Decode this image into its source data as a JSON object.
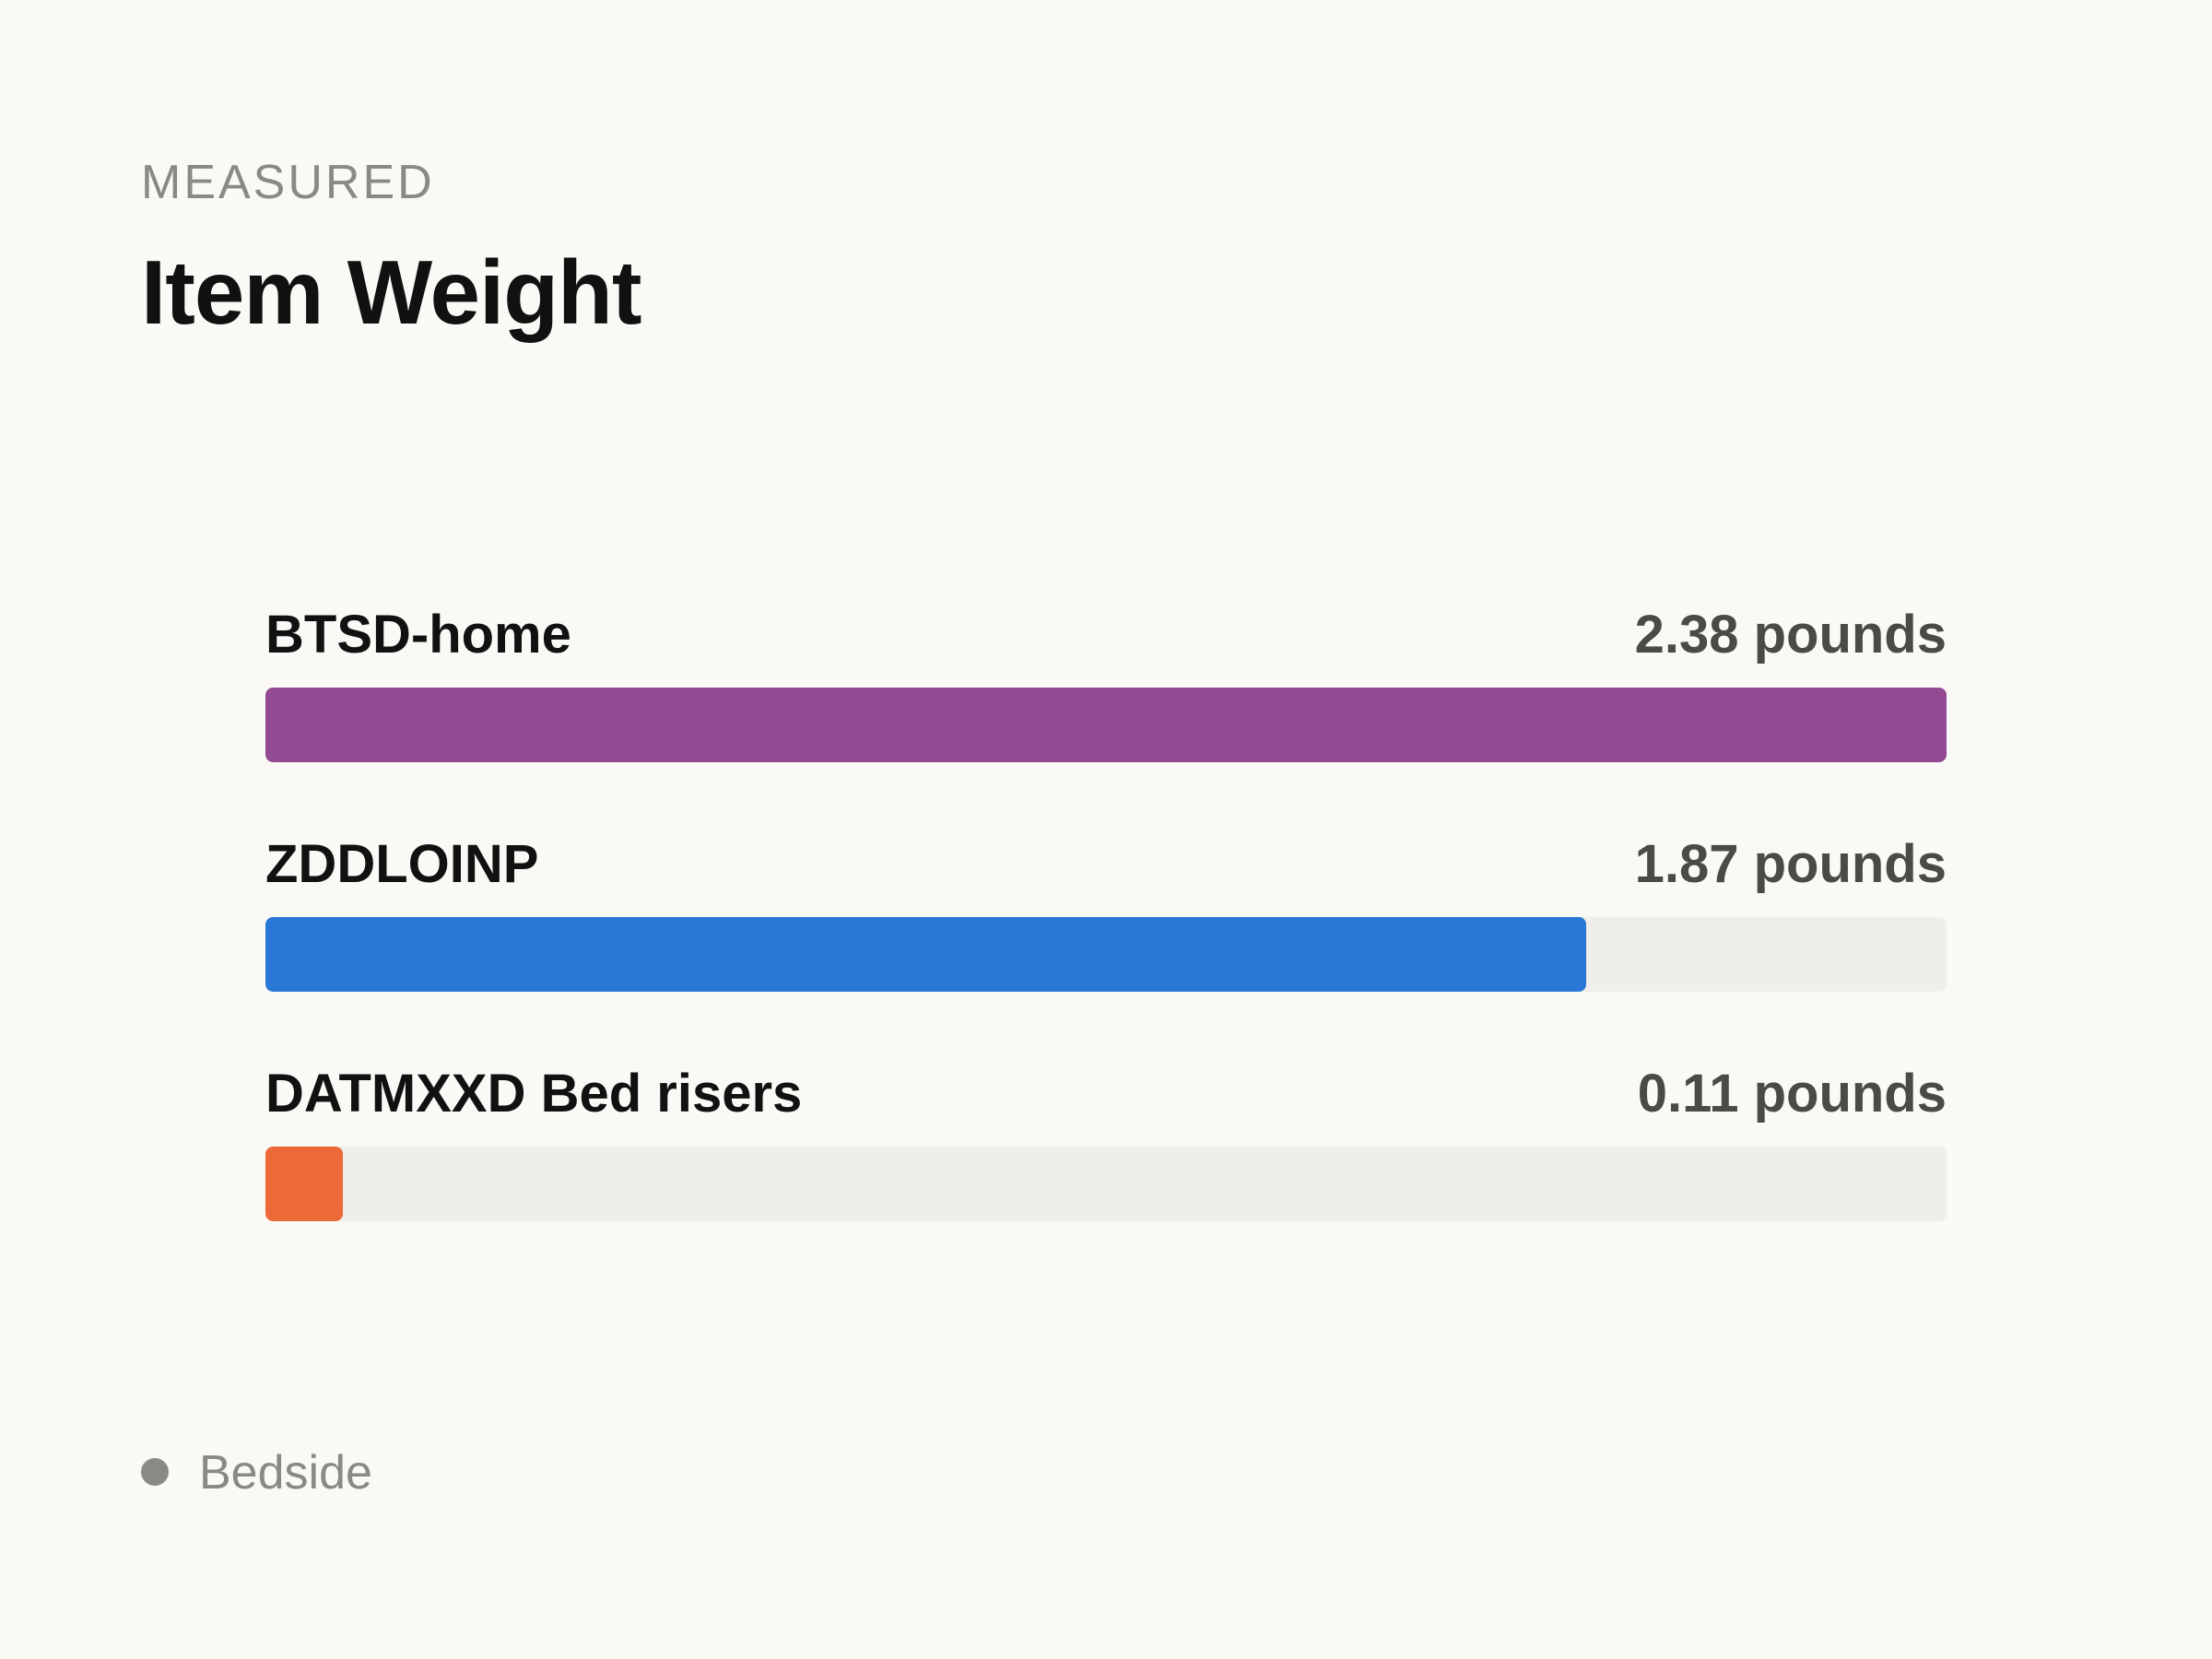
{
  "header": {
    "eyebrow": "MEASURED",
    "title": "Item Weight"
  },
  "colors": {
    "background": "#faf9f5",
    "track": "#efeeea",
    "legend_dot": "#8a8985"
  },
  "legend": {
    "label": "Bedside"
  },
  "chart_data": {
    "type": "bar",
    "orientation": "horizontal",
    "title": "Item Weight",
    "subtitle": "MEASURED",
    "unit": "pounds",
    "xlim": [
      0,
      2.38
    ],
    "grid": false,
    "legend_position": "bottom-left",
    "legend_entries": [
      "Bedside"
    ],
    "categories": [
      "BTSD-home",
      "ZDDLOINP",
      "DATMXXD Bed risers"
    ],
    "values": [
      2.38,
      1.87,
      0.11
    ],
    "value_labels": [
      "2.38 pounds",
      "1.87 pounds",
      "0.11 pounds"
    ],
    "bar_colors": [
      "#944a92",
      "#2a78d6",
      "#ec6a37"
    ]
  }
}
